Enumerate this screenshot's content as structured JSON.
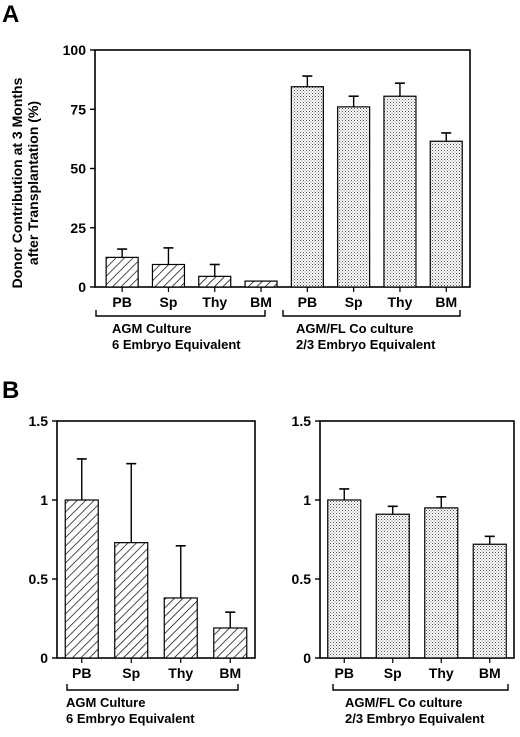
{
  "panel_a": {
    "letter": "A"
  },
  "panel_b": {
    "letter": "B"
  },
  "chart_data": [
    {
      "type": "bar",
      "panel": "A",
      "ylabel": "Donor Contribution at 3 Months after Transplantation (%)",
      "ylabel_lines": [
        "Donor Contribution at 3 Months",
        "after Transplantation (%)"
      ],
      "ylim": [
        0,
        100
      ],
      "yticks": [
        "0",
        "25",
        "50",
        "75",
        "100"
      ],
      "categories": [
        "PB",
        "Sp",
        "Thy",
        "BM",
        "PB",
        "Sp",
        "Thy",
        "BM"
      ],
      "groups": [
        {
          "lines": [
            "AGM Culture",
            "6 Embryo Equivalent"
          ],
          "pattern": "hatch"
        },
        {
          "lines": [
            "AGM/FL Co culture",
            "2/3 Embryo Equivalent"
          ],
          "pattern": "dots"
        }
      ],
      "values": [
        12.5,
        9.5,
        4.5,
        2.5,
        84.5,
        76,
        80.5,
        61.5
      ],
      "errors": [
        3.5,
        7,
        5,
        0,
        4.5,
        4.5,
        5.5,
        3.5
      ]
    },
    {
      "type": "bar",
      "panel": "B-left",
      "ylim": [
        0,
        1.5
      ],
      "yticks": [
        "0",
        "0.5",
        "1",
        "1.5"
      ],
      "categories": [
        "PB",
        "Sp",
        "Thy",
        "BM"
      ],
      "group_lines": [
        "AGM Culture",
        "6 Embryo Equivalent"
      ],
      "pattern": "hatch",
      "values": [
        1.0,
        0.73,
        0.38,
        0.19
      ],
      "errors": [
        0.26,
        0.5,
        0.33,
        0.1
      ]
    },
    {
      "type": "bar",
      "panel": "B-right",
      "ylim": [
        0,
        1.5
      ],
      "yticks": [
        "0",
        "0.5",
        "1",
        "1.5"
      ],
      "categories": [
        "PB",
        "Sp",
        "Thy",
        "BM"
      ],
      "group_lines": [
        "AGM/FL Co culture",
        "2/3 Embryo Equivalent"
      ],
      "pattern": "dots",
      "values": [
        1.0,
        0.91,
        0.95,
        0.72
      ],
      "errors": [
        0.07,
        0.05,
        0.07,
        0.05
      ]
    }
  ]
}
